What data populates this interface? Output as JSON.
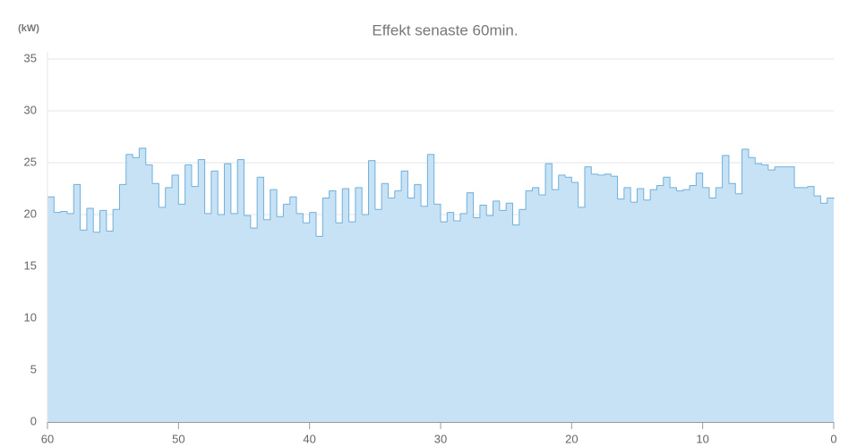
{
  "chart_data": {
    "type": "area",
    "step": true,
    "title": "Effekt senaste 60min.",
    "y_label": "(kW)",
    "x": [
      60,
      59.5,
      59,
      58.5,
      58,
      57.5,
      57,
      56.5,
      56,
      55.5,
      55,
      54.5,
      54,
      53.5,
      53,
      52.5,
      52,
      51.5,
      51,
      50.5,
      50,
      49.5,
      49,
      48.5,
      48,
      47.5,
      47,
      46.5,
      46,
      45.5,
      45,
      44.5,
      44,
      43.5,
      43,
      42.5,
      42,
      41.5,
      41,
      40.5,
      40,
      39.5,
      39,
      38.5,
      38,
      37.5,
      37,
      36.5,
      36,
      35.5,
      35,
      34.5,
      34,
      33.5,
      33,
      32.5,
      32,
      31.5,
      31,
      30.5,
      30,
      29.5,
      29,
      28.5,
      28,
      27.5,
      27,
      26.5,
      26,
      25.5,
      25,
      24.5,
      24,
      23.5,
      23,
      22.5,
      22,
      21.5,
      21,
      20.5,
      20,
      19.5,
      19,
      18.5,
      18,
      17.5,
      17,
      16.5,
      16,
      15.5,
      15,
      14.5,
      14,
      13.5,
      13,
      12.5,
      12,
      11.5,
      11,
      10.5,
      10,
      9.5,
      9,
      8.5,
      8,
      7.5,
      7,
      6.5,
      6,
      5.5,
      5,
      4.5,
      4,
      3.5,
      3,
      2.5,
      2,
      1.5,
      1,
      0.5,
      0
    ],
    "series": [
      {
        "name": "Effekt",
        "color": "#6fb0dc",
        "fill": "#c8e2f5",
        "values": [
          21.7,
          20.2,
          20.3,
          20.1,
          22.9,
          18.5,
          20.6,
          18.3,
          20.4,
          18.4,
          20.5,
          22.9,
          25.8,
          25.5,
          26.4,
          24.8,
          23.0,
          20.7,
          22.6,
          23.8,
          21.0,
          24.8,
          22.7,
          25.3,
          20.1,
          24.2,
          20.0,
          24.9,
          20.1,
          25.3,
          19.9,
          18.7,
          23.6,
          19.5,
          22.4,
          19.8,
          21.0,
          21.7,
          20.1,
          19.2,
          20.2,
          17.9,
          21.6,
          22.3,
          19.2,
          22.5,
          19.3,
          22.6,
          20.0,
          25.2,
          20.5,
          23.0,
          21.6,
          22.3,
          24.2,
          21.6,
          22.9,
          20.8,
          25.8,
          21.0,
          19.3,
          20.2,
          19.4,
          20.1,
          22.1,
          19.7,
          20.9,
          19.9,
          21.3,
          20.4,
          21.1,
          19.0,
          20.5,
          22.3,
          22.6,
          21.9,
          24.9,
          22.4,
          23.8,
          23.6,
          23.1,
          20.7,
          24.6,
          23.9,
          23.8,
          23.9,
          23.7,
          21.5,
          22.6,
          21.2,
          22.5,
          21.4,
          22.4,
          22.8,
          23.6,
          22.6,
          22.3,
          22.4,
          22.8,
          24.0,
          22.6,
          21.6,
          22.6,
          25.7,
          23.0,
          22.0,
          26.3,
          25.5,
          24.9,
          24.8,
          24.3,
          24.6,
          24.6,
          24.6,
          22.6,
          22.6,
          22.7,
          21.8,
          21.1,
          21.6,
          21.5
        ]
      }
    ],
    "xlim": [
      60,
      0
    ],
    "xticks": [
      60,
      50,
      40,
      30,
      20,
      10,
      0
    ],
    "ylim": [
      0,
      35
    ],
    "yticks": [
      0,
      5,
      10,
      15,
      20,
      25,
      30,
      35
    ],
    "grid": true
  }
}
